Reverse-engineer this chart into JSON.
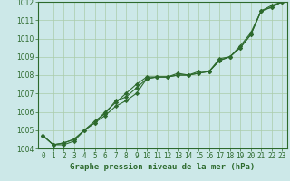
{
  "x": [
    0,
    1,
    2,
    3,
    4,
    5,
    6,
    7,
    8,
    9,
    10,
    11,
    12,
    13,
    14,
    15,
    16,
    17,
    18,
    19,
    20,
    21,
    22,
    23
  ],
  "series": [
    [
      1004.7,
      1004.2,
      1004.2,
      1004.4,
      1005.0,
      1005.4,
      1005.8,
      1006.3,
      1006.6,
      1007.0,
      1007.8,
      1007.9,
      1007.9,
      1008.0,
      1008.0,
      1008.1,
      1008.2,
      1008.8,
      1009.0,
      1009.5,
      1010.2,
      1011.5,
      1011.7,
      1012.0
    ],
    [
      1004.7,
      1004.2,
      1004.3,
      1004.5,
      1005.0,
      1005.4,
      1006.0,
      1006.5,
      1007.0,
      1007.5,
      1007.9,
      1007.9,
      1007.9,
      1008.0,
      1008.0,
      1008.1,
      1008.2,
      1008.8,
      1009.0,
      1009.5,
      1010.2,
      1011.5,
      1011.7,
      1012.0
    ],
    [
      1004.7,
      1004.2,
      1004.3,
      1004.5,
      1005.0,
      1005.5,
      1005.9,
      1006.6,
      1006.8,
      1007.3,
      1007.8,
      1007.9,
      1007.9,
      1008.1,
      1008.0,
      1008.2,
      1008.2,
      1008.9,
      1009.0,
      1009.6,
      1010.3,
      1011.5,
      1011.8,
      1012.0
    ]
  ],
  "line_color": "#2d6a2d",
  "marker": "D",
  "markersize": 2.2,
  "linewidth": 0.8,
  "bg_color": "#cce8e8",
  "grid_color": "#aaccaa",
  "ylim": [
    1004,
    1012
  ],
  "yticks": [
    1004,
    1005,
    1006,
    1007,
    1008,
    1009,
    1010,
    1011,
    1012
  ],
  "xlim": [
    -0.5,
    23.5
  ],
  "xlabel": "Graphe pression niveau de la mer (hPa)",
  "xlabel_fontsize": 6.5,
  "tick_fontsize": 5.5,
  "title": ""
}
